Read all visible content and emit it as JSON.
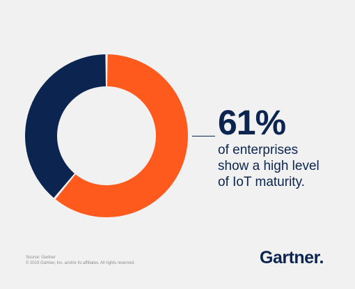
{
  "chart_data": {
    "type": "pie",
    "donut": true,
    "slices": [
      {
        "value": 61,
        "color": "#fe5a1d"
      },
      {
        "value": 39,
        "color": "#0b2550"
      }
    ],
    "background": "#f1f1f1"
  },
  "stat": {
    "value": "61%",
    "lines": [
      "of enterprises",
      "show a high level",
      "of IoT maturity."
    ]
  },
  "footer": {
    "source": "Source: Gartner",
    "copyright": "© 2019 Gartner, Inc. and/or its affiliates. All rights reserved."
  },
  "logo": {
    "text": "Gartner",
    "dot": "."
  },
  "colors": {
    "accent": "#fe5a1d",
    "navy": "#0b2550"
  }
}
